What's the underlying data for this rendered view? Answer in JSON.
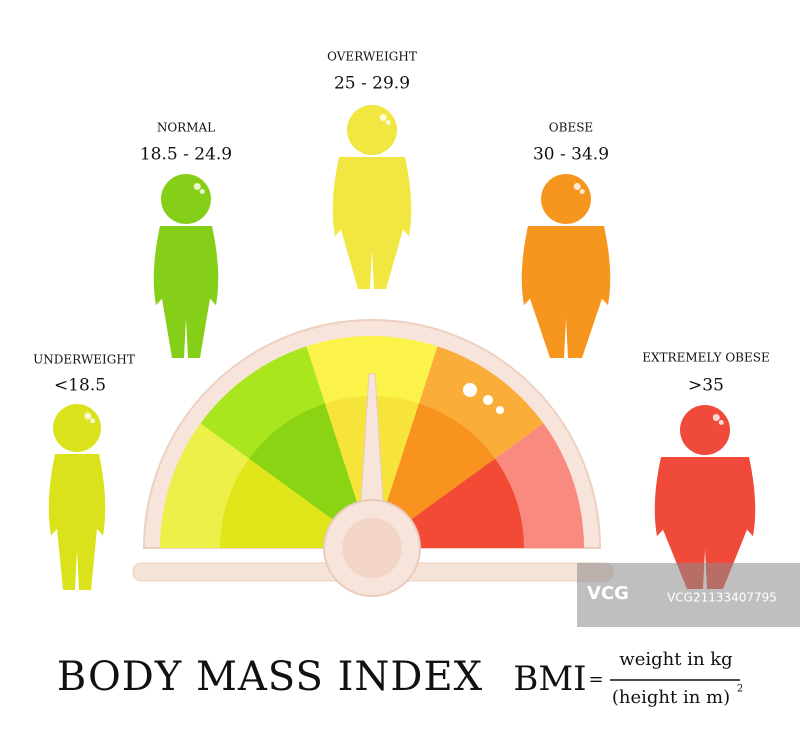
{
  "categories": [
    {
      "name": "UNDERWEIGHT",
      "range": "<18.5"
    },
    {
      "name": "NORMAL",
      "range": "18.5 - 24.9"
    },
    {
      "name": "OVERWEIGHT",
      "range": "25 - 29.9"
    },
    {
      "name": "OBESE",
      "range": "30 - 34.9"
    },
    {
      "name": "EXTREMELY OBESE",
      "range": ">35"
    }
  ],
  "title": "BODY MASS INDEX",
  "formula": {
    "lhs": "BMI",
    "equals": "=",
    "numerator": "weight in kg",
    "denominator": "(height in m)",
    "exponent": "2"
  },
  "watermark": {
    "logo": "VCG",
    "id": "VCG21133407795"
  }
}
